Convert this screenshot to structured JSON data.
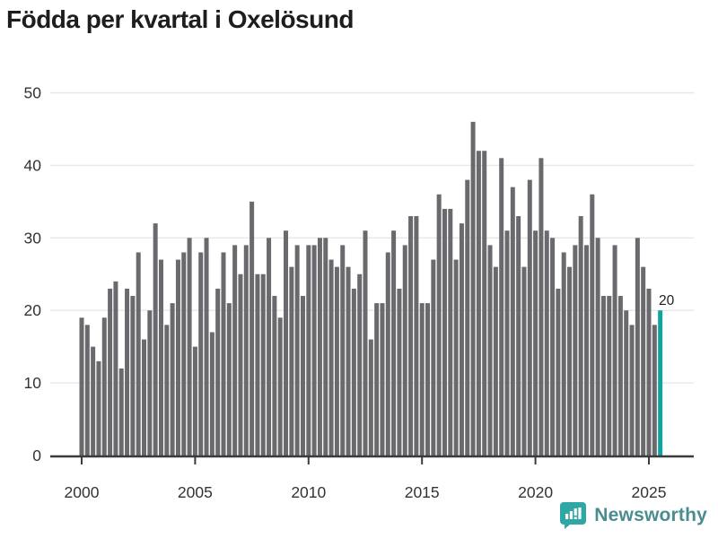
{
  "title": "Födda per kvartal i Oxelösund",
  "annotation": {
    "last_value_label": "20"
  },
  "logo": {
    "text": "Newsworthy",
    "icon": "newsworthy-speech-bubble-bar-chart-icon"
  },
  "colors": {
    "bar": "#69696e",
    "highlight": "#12a2a0",
    "grid": "#e7e7e7",
    "axis": "#3b3b3b",
    "tick_text": "#333333",
    "title_text": "#1d1d1d",
    "annotation_text": "#1d1d1d",
    "logo_text": "#4a8d8f",
    "logo_bg": "#2ea7a5"
  },
  "chart_data": {
    "type": "bar",
    "title": "Födda per kvartal i Oxelösund",
    "x_unit": "quarter",
    "x_start": "2000-Q1",
    "x_end": "2025-Q3",
    "values": [
      19,
      18,
      15,
      13,
      19,
      23,
      24,
      12,
      23,
      22,
      28,
      16,
      20,
      32,
      27,
      18,
      21,
      27,
      28,
      30,
      15,
      28,
      30,
      17,
      23,
      28,
      21,
      29,
      25,
      29,
      35,
      25,
      25,
      30,
      22,
      19,
      31,
      26,
      29,
      22,
      29,
      29,
      30,
      30,
      27,
      26,
      29,
      26,
      23,
      25,
      31,
      16,
      21,
      21,
      28,
      31,
      23,
      29,
      33,
      33,
      21,
      21,
      27,
      36,
      34,
      34,
      27,
      32,
      38,
      46,
      42,
      42,
      29,
      26,
      41,
      31,
      37,
      33,
      26,
      38,
      31,
      41,
      31,
      30,
      23,
      28,
      26,
      29,
      33,
      29,
      36,
      30,
      22,
      22,
      29,
      22,
      20,
      18,
      30,
      26,
      23,
      18,
      20
    ],
    "highlight_last": true,
    "last_label": "20",
    "xticks": [
      2000,
      2005,
      2010,
      2015,
      2020,
      2025
    ],
    "yticks": [
      0,
      10,
      20,
      30,
      40,
      50
    ],
    "ylim": [
      0,
      50
    ],
    "grid": "horizontal",
    "legend": "none"
  }
}
